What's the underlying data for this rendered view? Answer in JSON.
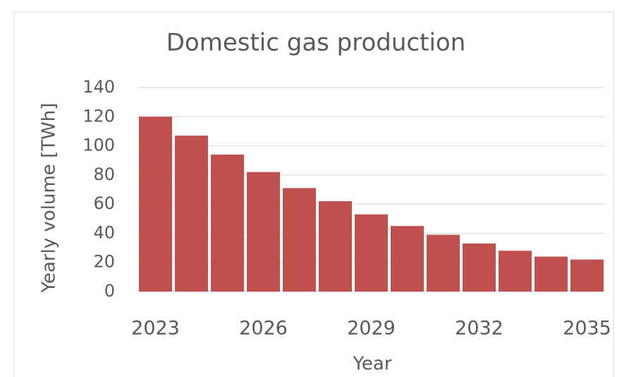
{
  "chart_data": {
    "type": "bar",
    "title": "Domestic gas production",
    "x_label": "Year",
    "y_label": "Yearly volume [TWh]",
    "categories": [
      "2023",
      null,
      null,
      "2026",
      null,
      null,
      "2029",
      null,
      null,
      "2032",
      null,
      null,
      "2035"
    ],
    "values": [
      120,
      107,
      94,
      82,
      71,
      62,
      53,
      45,
      39,
      33,
      28,
      24,
      22
    ],
    "color": "#c0504d",
    "ylim": [
      0,
      140
    ],
    "yticks": [
      0,
      20,
      40,
      60,
      80,
      100,
      120,
      140
    ],
    "grid": true
  }
}
